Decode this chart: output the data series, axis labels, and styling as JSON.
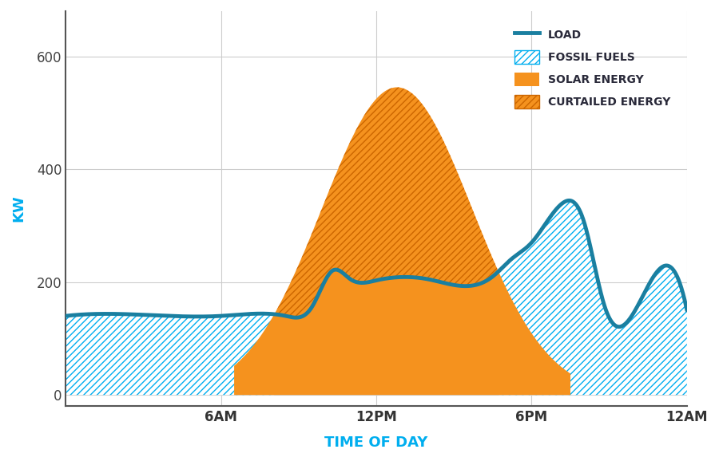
{
  "title": "",
  "xlabel": "TIME OF DAY",
  "ylabel": "KW",
  "xlabel_color": "#00AEEF",
  "ylabel_color": "#00AEEF",
  "xtick_labels": [
    "6AM",
    "12PM",
    "6PM",
    "12AM"
  ],
  "xtick_positions": [
    6,
    12,
    18,
    24
  ],
  "ytick_labels": [
    "0",
    "200",
    "400",
    "600"
  ],
  "ytick_positions": [
    0,
    200,
    400,
    600
  ],
  "xlim": [
    0,
    24
  ],
  "ylim": [
    -20,
    680
  ],
  "load_color": "#1a7fa0",
  "fossil_face_color": "#ffffff",
  "fossil_edge_color": "#00AEEF",
  "solar_color": "#F5921E",
  "curtailed_edge_color": "#cc6600",
  "background_color": "#ffffff",
  "grid_color": "#cccccc",
  "legend_label_color": "#2a2a3a",
  "legend_fontsize": 10,
  "axis_label_fontsize": 13
}
